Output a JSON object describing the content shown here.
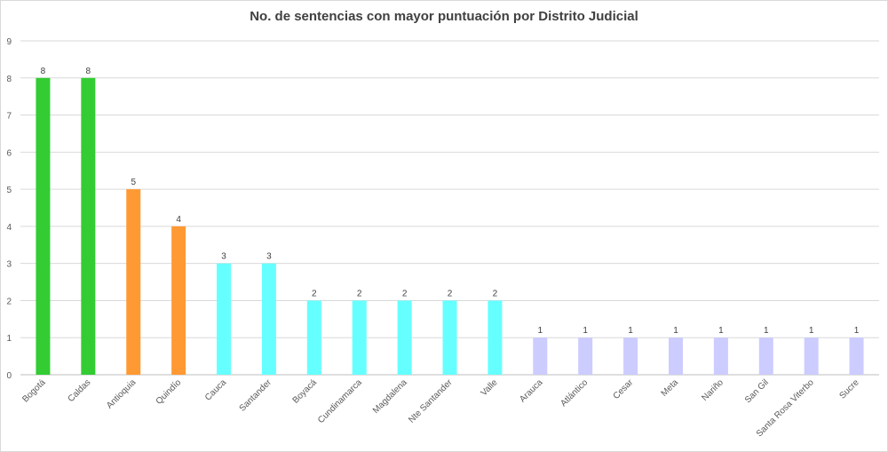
{
  "chart_data": {
    "type": "bar",
    "title": "No. de sentencias con mayor puntuación por Distrito Judicial",
    "xlabel": "",
    "ylabel": "",
    "ylim": [
      0,
      9
    ],
    "yticks": [
      0,
      1,
      2,
      3,
      4,
      5,
      6,
      7,
      8,
      9
    ],
    "grid": true,
    "categories": [
      "Bogotá",
      "Caldas",
      "Antioquia",
      "Quindío",
      "Cauca",
      "Santander",
      "Boyacá",
      "Cundinamarca",
      "Magdalena",
      "Nte Santander",
      "Valle",
      "Arauca",
      "Atlántico",
      "Cesar",
      "Meta",
      "Nariño",
      "San Gil",
      "Santa Rosa Viterbo",
      "Sucre"
    ],
    "values": [
      8,
      8,
      5,
      4,
      3,
      3,
      2,
      2,
      2,
      2,
      2,
      1,
      1,
      1,
      1,
      1,
      1,
      1,
      1
    ],
    "bar_colors": [
      "#33cc33",
      "#33cc33",
      "#ff9933",
      "#ff9933",
      "#66ffff",
      "#66ffff",
      "#66ffff",
      "#66ffff",
      "#66ffff",
      "#66ffff",
      "#66ffff",
      "#ccccff",
      "#ccccff",
      "#ccccff",
      "#ccccff",
      "#ccccff",
      "#ccccff",
      "#ccccff",
      "#ccccff"
    ],
    "data_labels": true
  }
}
